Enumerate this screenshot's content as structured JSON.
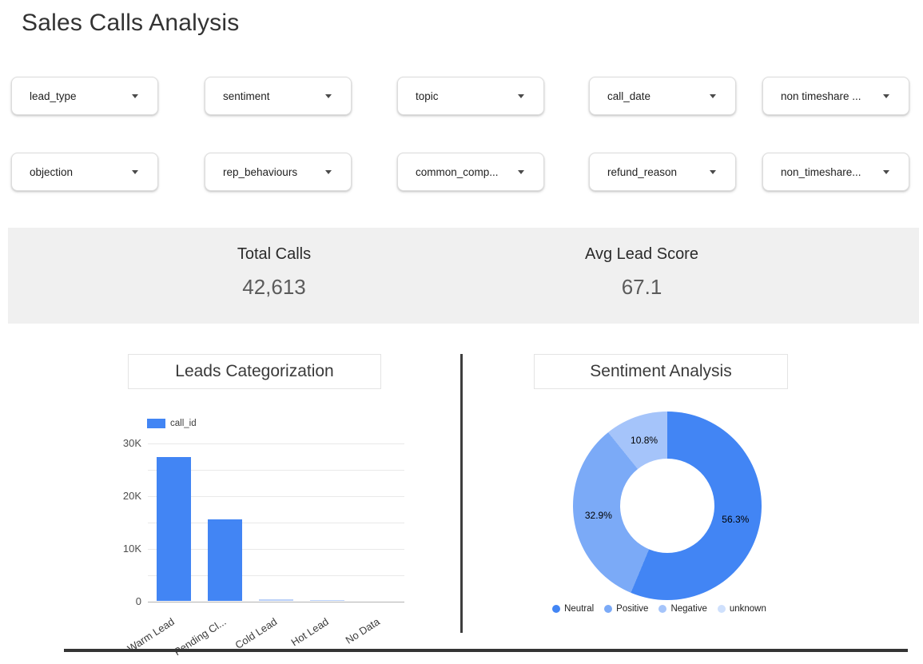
{
  "page": {
    "title": "Sales Calls Analysis"
  },
  "filters": {
    "rows": [
      [
        "lead_type",
        "sentiment",
        "topic",
        "call_date",
        "non timeshare ..."
      ],
      [
        "objection",
        "rep_behaviours",
        "common_comp...",
        "refund_reason",
        "non_timeshare..."
      ]
    ]
  },
  "scorecards": [
    {
      "label": "Total Calls",
      "value": "42,613"
    },
    {
      "label": "Avg Lead Score",
      "value": "67.1"
    }
  ],
  "chart_data": [
    {
      "type": "bar",
      "title": "Leads Categorization",
      "categories": [
        "Warm Lead",
        "Pending Cl...",
        "Cold Lead",
        "Hot Lead",
        "No Data"
      ],
      "series": [
        {
          "name": "call_id",
          "values": [
            27200,
            15500,
            250,
            180,
            0
          ]
        }
      ],
      "xlabel": "",
      "ylabel": "",
      "ylim": [
        0,
        30000
      ],
      "grid_step": 5000,
      "ytick_labels": [
        [
          0,
          "0"
        ],
        [
          10000,
          "10K"
        ],
        [
          20000,
          "20K"
        ],
        [
          30000,
          "30K"
        ]
      ],
      "bar_color": "#4285f4",
      "bar_color_tiny": "#b9cff7",
      "legend_position": "top",
      "grid": true
    },
    {
      "type": "pie",
      "title": "Sentiment Analysis",
      "donut": true,
      "slices": [
        {
          "label": "Neutral",
          "pct": 56.3,
          "color": "#4285f4"
        },
        {
          "label": "Positive",
          "pct": 32.9,
          "color": "#7baaf7"
        },
        {
          "label": "Negative",
          "pct": 10.8,
          "color": "#a5c4fa"
        },
        {
          "label": "unknown",
          "pct": 0.0,
          "color": "#cfe0fc"
        }
      ],
      "legend_position": "bottom"
    }
  ]
}
